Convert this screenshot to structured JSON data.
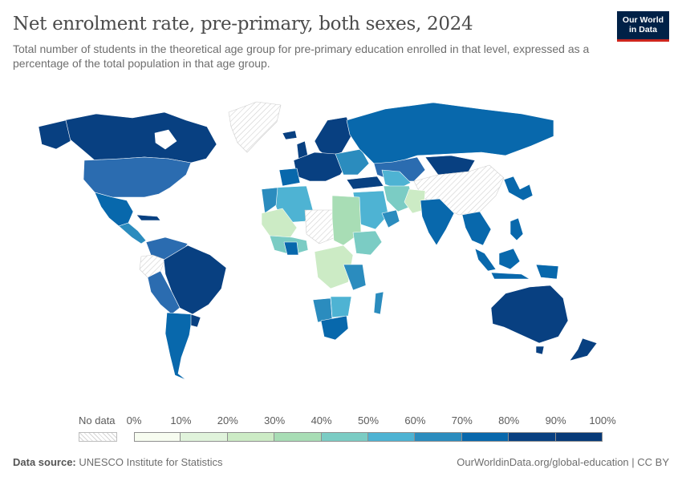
{
  "header": {
    "title": "Net enrolment rate, pre-primary, both sexes, 2024",
    "subtitle": "Total number of students in the theoretical age group for pre-primary education enrolled in that level, expressed as a percentage of the total population in that age group."
  },
  "logo": {
    "line1": "Our World",
    "line2": "in Data"
  },
  "legend": {
    "no_data_label": "No data",
    "ticks": [
      "0%",
      "10%",
      "20%",
      "30%",
      "40%",
      "50%",
      "60%",
      "70%",
      "80%",
      "90%",
      "100%"
    ],
    "colors": [
      "#f7fcf0",
      "#e0f3db",
      "#ccebc5",
      "#a8ddb5",
      "#7bccc4",
      "#4eb3d3",
      "#2b8cbe",
      "#0868ac",
      "#084081",
      "#073a78"
    ],
    "no_data_color": "#e5e5e5"
  },
  "footer": {
    "source_label": "Data source:",
    "source_value": "UNESCO Institute for Statistics",
    "url": "OurWorldinData.org/global-education | CC BY"
  }
}
